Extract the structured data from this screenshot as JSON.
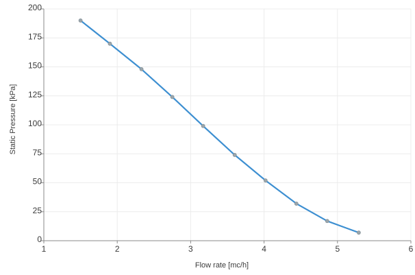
{
  "chart_data": {
    "type": "line",
    "title": "",
    "xlabel": "Flow rate [mc/h]",
    "ylabel": "Static Pressure [kPa]",
    "xlim": [
      1,
      6
    ],
    "ylim": [
      0,
      200
    ],
    "x_ticks": [
      "1",
      "2",
      "3",
      "4",
      "5",
      "6"
    ],
    "y_ticks": [
      "0",
      "25",
      "50",
      "75",
      "100",
      "125",
      "150",
      "175",
      "200"
    ],
    "grid": true,
    "series": [
      {
        "color": "#3d8fd1",
        "marker_color": "#9aa6ad",
        "points": [
          {
            "x": 1.5,
            "y": 190
          },
          {
            "x": 1.9,
            "y": 170
          },
          {
            "x": 2.33,
            "y": 148
          },
          {
            "x": 2.75,
            "y": 124
          },
          {
            "x": 3.17,
            "y": 99
          },
          {
            "x": 3.6,
            "y": 74
          },
          {
            "x": 4.02,
            "y": 52
          },
          {
            "x": 4.44,
            "y": 32
          },
          {
            "x": 4.86,
            "y": 17
          },
          {
            "x": 5.29,
            "y": 7
          }
        ]
      }
    ]
  }
}
